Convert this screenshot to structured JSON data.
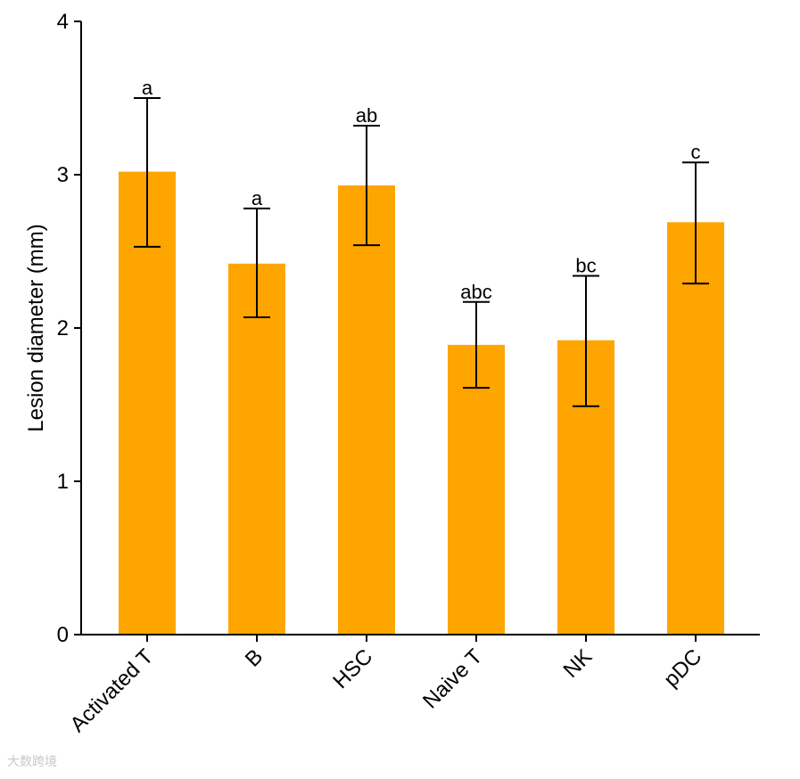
{
  "chart_data": {
    "type": "bar",
    "title": "",
    "xlabel": "",
    "ylabel": "Lesion diameter (mm)",
    "ylim": [
      0,
      4
    ],
    "yticks": [
      0,
      1,
      2,
      3,
      4
    ],
    "grid": false,
    "bar_color": "#FFA500",
    "categories": [
      "Activated T",
      "B",
      "HSC",
      "Naive T",
      "NK",
      "pDC"
    ],
    "values": [
      3.02,
      2.42,
      2.93,
      1.89,
      1.92,
      2.69
    ],
    "error_low": [
      2.53,
      2.07,
      2.54,
      1.61,
      1.49,
      2.29
    ],
    "error_high": [
      3.5,
      2.78,
      3.32,
      2.17,
      2.34,
      3.08
    ],
    "significance_letters": [
      "a",
      "a",
      "ab",
      "abc",
      "bc",
      "c"
    ]
  },
  "watermark": "大数跨境"
}
